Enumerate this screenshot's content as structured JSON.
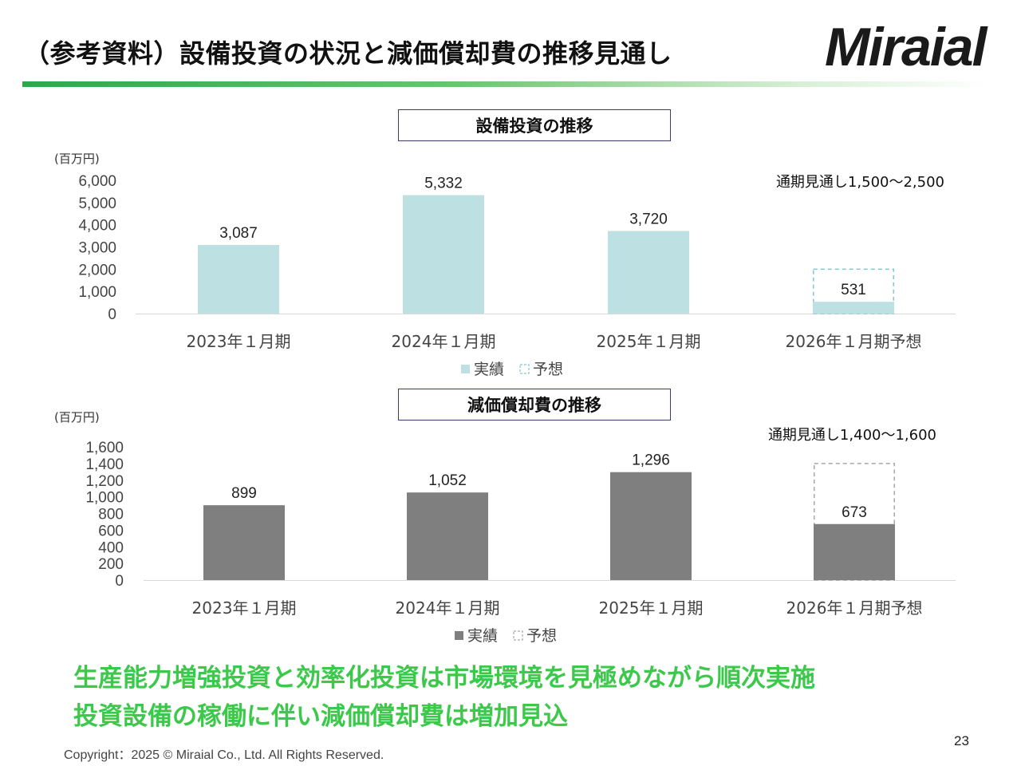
{
  "header": {
    "title": "（参考資料）設備投資の状況と減価償却費の推移見通し",
    "logo_text": "Miraial"
  },
  "chart_data": [
    {
      "type": "bar",
      "title": "設備投資の推移",
      "unit": "(百万円)",
      "categories": [
        "2023年１月期",
        "2024年１月期",
        "2025年１月期",
        "2026年１月期予想"
      ],
      "series": [
        {
          "name": "実績",
          "values": [
            3087,
            5332,
            3720,
            531
          ],
          "color": "#bde0e3"
        },
        {
          "name": "予想",
          "values": [
            null,
            null,
            null,
            2000
          ],
          "style": "dashed-outline",
          "color": "#7fc8d0"
        }
      ],
      "data_labels": [
        "3,087",
        "5,332",
        "3,720",
        "531"
      ],
      "yticks": [
        "0",
        "1,000",
        "2,000",
        "3,000",
        "4,000",
        "5,000",
        "6,000"
      ],
      "ylim": [
        0,
        6000
      ],
      "annotation": "通期見通し1,500～2,500",
      "legend_position": "bottom"
    },
    {
      "type": "bar",
      "title": "減価償却費の推移",
      "unit": "(百万円)",
      "categories": [
        "2023年１月期",
        "2024年１月期",
        "2025年１月期",
        "2026年１月期予想"
      ],
      "series": [
        {
          "name": "実績",
          "values": [
            899,
            1052,
            1296,
            673
          ],
          "color": "#7f7f7f"
        },
        {
          "name": "予想",
          "values": [
            null,
            null,
            null,
            1400
          ],
          "style": "dashed-outline",
          "color": "#a6a6a6"
        }
      ],
      "data_labels": [
        "899",
        "1,052",
        "1,296",
        "673"
      ],
      "yticks": [
        "0",
        "200",
        "400",
        "600",
        "800",
        "1,000",
        "1,200",
        "1,400",
        "1,600"
      ],
      "ylim": [
        0,
        1600
      ],
      "annotation": "通期見通し1,400～1,600",
      "legend_position": "bottom"
    }
  ],
  "conclusion": {
    "line1": "生産能力増強投資と効率化投資は市場環境を見極めながら順次実施",
    "line2": "投資設備の稼働に伴い減価償却費は増加見込",
    "color": "#3cc84a"
  },
  "footer": {
    "copyright": "Copyright：2025 © Miraial Co., Ltd. All Rights Reserved.",
    "page_number": "23"
  }
}
